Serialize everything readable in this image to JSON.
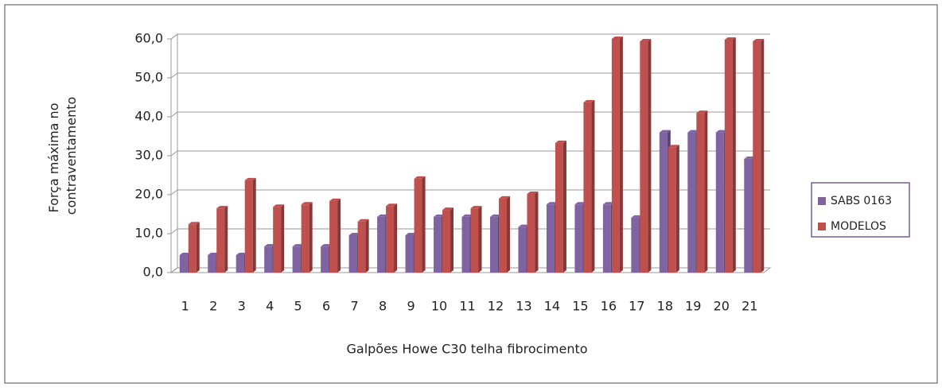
{
  "chart_data": {
    "type": "bar",
    "xlabel": "Galpões Howe C30 telha fibrocimento",
    "ylabel": [
      "Força máxima no",
      "contraventamento"
    ],
    "categories": [
      "1",
      "2",
      "3",
      "4",
      "5",
      "6",
      "7",
      "8",
      "9",
      "10",
      "11",
      "12",
      "13",
      "14",
      "15",
      "16",
      "17",
      "18",
      "19",
      "20",
      "21"
    ],
    "series": [
      {
        "name": "SABS 0163",
        "color": "#8064a2",
        "values": [
          4.5,
          4.5,
          4.5,
          6.7,
          6.7,
          6.7,
          9.6,
          14.3,
          9.6,
          14.3,
          14.3,
          14.3,
          11.7,
          17.5,
          17.5,
          17.5,
          14.1,
          36.0,
          36.0,
          36.0,
          29.2
        ]
      },
      {
        "name": "MODELOS",
        "color": "#c0504d",
        "values": [
          12.4,
          16.5,
          23.7,
          16.9,
          17.5,
          18.4,
          13.1,
          17.1,
          24.1,
          16.1,
          16.5,
          19.0,
          20.2,
          33.3,
          43.7,
          60.0,
          59.4,
          32.2,
          41.0,
          59.8,
          59.4
        ]
      }
    ],
    "ylim": [
      0,
      60
    ],
    "yticks": [
      {
        "value": 0,
        "label": "0,0"
      },
      {
        "value": 10,
        "label": "10,0"
      },
      {
        "value": 20,
        "label": "20,0"
      },
      {
        "value": 30,
        "label": "30,0"
      },
      {
        "value": 40,
        "label": "40,0"
      },
      {
        "value": 50,
        "label": "50,0"
      },
      {
        "value": 60,
        "label": "60,0"
      }
    ],
    "grid": true,
    "legend": "right"
  }
}
